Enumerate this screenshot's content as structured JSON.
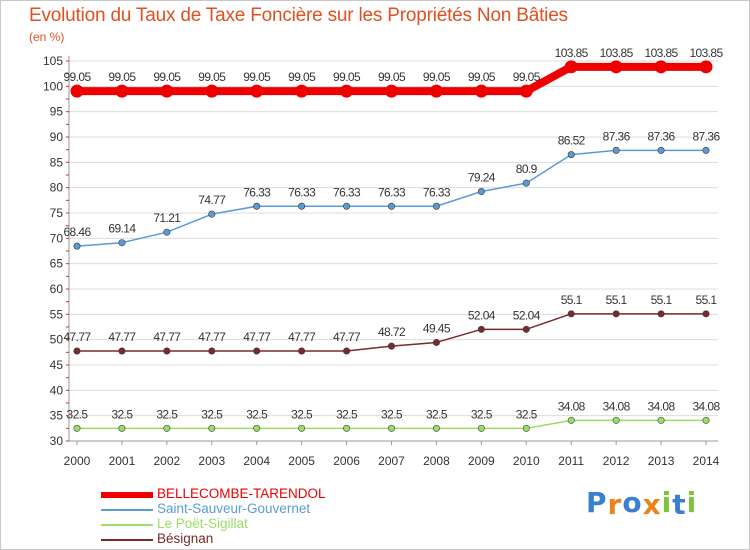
{
  "chart_data": {
    "type": "line",
    "title": "Evolution du Taux de Taxe Foncière sur les Propriétés Non Bâties",
    "subtitle": "(en %)",
    "x": [
      "2000",
      "2001",
      "2002",
      "2003",
      "2004",
      "2005",
      "2006",
      "2007",
      "2008",
      "2009",
      "2010",
      "2011",
      "2012",
      "2013",
      "2014"
    ],
    "ylim": [
      30,
      105
    ],
    "y_ticks": [
      30,
      35,
      40,
      45,
      50,
      55,
      60,
      65,
      70,
      75,
      80,
      85,
      90,
      95,
      100,
      105
    ],
    "grid": "horizontal",
    "legend_position": "bottom-left",
    "series": [
      {
        "name": "BELLECOMBE-TARENDOL",
        "color": "#ee0000",
        "values": [
          99.05,
          99.05,
          99.05,
          99.05,
          99.05,
          99.05,
          99.05,
          99.05,
          99.05,
          99.05,
          99.05,
          103.85,
          103.85,
          103.85,
          103.85
        ],
        "labels": [
          "99.05",
          "99.05",
          "99.05",
          "99.05",
          "99.05",
          "99.05",
          "99.05",
          "99.05",
          "99.05",
          "99.05",
          "99.05",
          "103.85",
          "103.85",
          "103.85",
          "103.85"
        ]
      },
      {
        "name": "Saint-Sauveur-Gouvernet",
        "color": "#5b9bd5",
        "values": [
          68.46,
          69.14,
          71.21,
          74.77,
          76.33,
          76.33,
          76.33,
          76.33,
          76.33,
          79.24,
          80.9,
          86.52,
          87.36,
          87.36,
          87.36
        ],
        "labels": [
          "68.46",
          "69.14",
          "71.21",
          "74.77",
          "76.33",
          "76.33",
          "76.33",
          "76.33",
          "76.33",
          "79.24",
          "80.9",
          "86.52",
          "87.36",
          "87.36",
          "87.36"
        ]
      },
      {
        "name": "Le Poët-Sigillat",
        "color": "#99dd66",
        "values": [
          32.5,
          32.5,
          32.5,
          32.5,
          32.5,
          32.5,
          32.5,
          32.5,
          32.5,
          32.5,
          32.5,
          34.08,
          34.08,
          34.08,
          34.08
        ],
        "labels": [
          "32.5",
          "32.5",
          "32.5",
          "32.5",
          "32.5",
          "32.5",
          "32.5",
          "32.5",
          "32.5",
          "32.5",
          "32.5",
          "34.08",
          "34.08",
          "34.08",
          "34.08"
        ]
      },
      {
        "name": "Bésignan",
        "color": "#7a2a2a",
        "values": [
          47.77,
          47.77,
          47.77,
          47.77,
          47.77,
          47.77,
          47.77,
          48.72,
          49.45,
          52.04,
          52.04,
          55.1,
          55.1,
          55.1,
          55.1
        ],
        "labels": [
          "47.77",
          "47.77",
          "47.77",
          "47.77",
          "47.77",
          "47.77",
          "47.77",
          "48.72",
          "49.45",
          "52.04",
          "52.04",
          "55.1",
          "55.1",
          "55.1",
          "55.1"
        ]
      }
    ]
  },
  "legend": {
    "items": [
      {
        "label": "BELLECOMBE-TARENDOL",
        "color": "#ee0000",
        "thickness": 6
      },
      {
        "label": "Saint-Sauveur-Gouvernet",
        "color": "#5b9bd5",
        "thickness": 2
      },
      {
        "label": "Le Poët-Sigillat",
        "color": "#99dd66",
        "thickness": 2
      },
      {
        "label": "Bésignan",
        "color": "#7a2a2a",
        "thickness": 2
      }
    ]
  },
  "branding": {
    "logo_text": "Proxiti",
    "letter_colors": [
      "#3a7fd0",
      "#e8841a",
      "#3a7fd0",
      "#e8841a",
      "#7cc43a",
      "#3a7fd0",
      "#7cc43a"
    ]
  }
}
